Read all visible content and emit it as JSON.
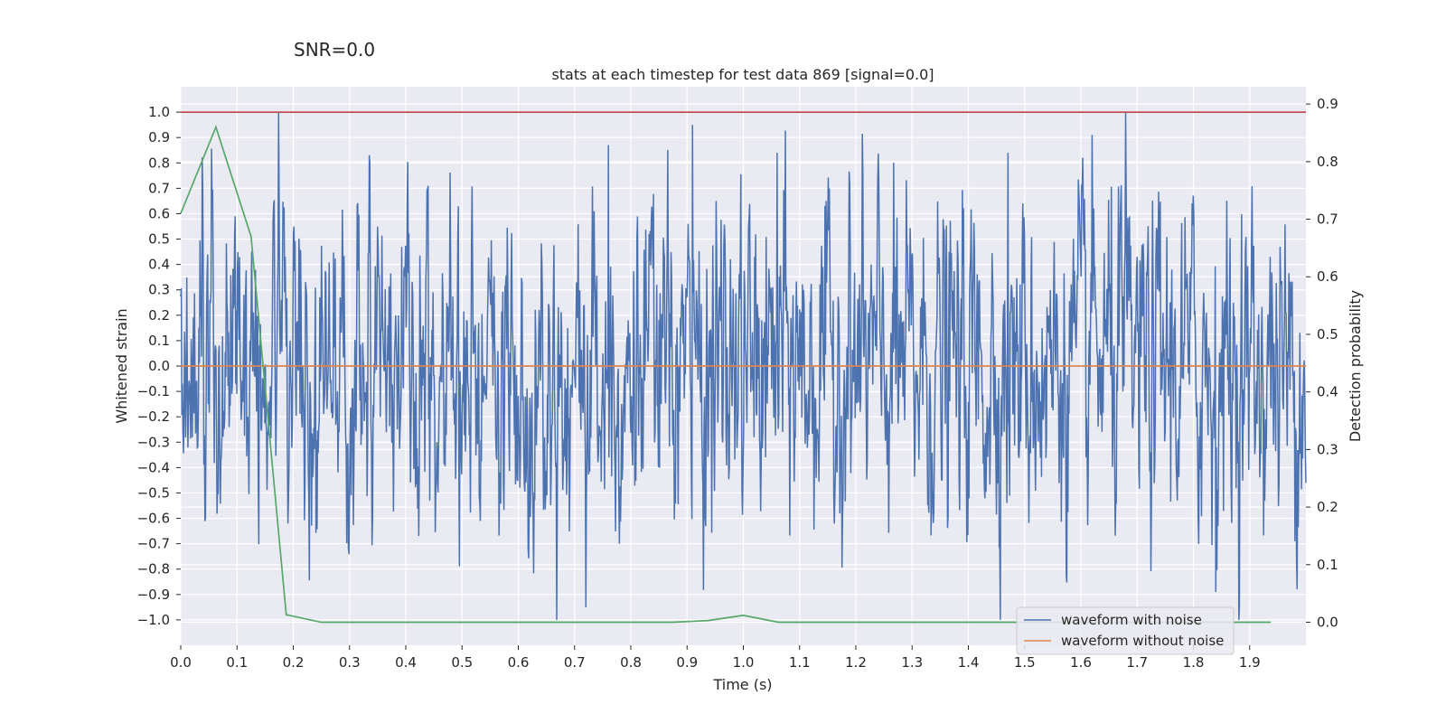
{
  "annotation": "SNR=0.0",
  "chart_data": {
    "type": "line",
    "title": "stats at each timestep for test data 869 [signal=0.0]",
    "xlabel": "Time (s)",
    "ylabel": "Whitened strain",
    "y2label": "Detection probability",
    "xlim": [
      0.0,
      2.0
    ],
    "ylim": [
      -1.1,
      1.1
    ],
    "y2lim": [
      -0.04,
      0.93
    ],
    "x_ticks": [
      "0.0",
      "0.1",
      "0.2",
      "0.3",
      "0.4",
      "0.5",
      "0.6",
      "0.7",
      "0.8",
      "0.9",
      "1.0",
      "1.1",
      "1.2",
      "1.3",
      "1.4",
      "1.5",
      "1.6",
      "1.7",
      "1.8",
      "1.9"
    ],
    "y_ticks": [
      "1.0",
      "0.9",
      "0.8",
      "0.7",
      "0.6",
      "0.5",
      "0.4",
      "0.3",
      "0.2",
      "0.1",
      "0.0",
      "−0.1",
      "−0.2",
      "−0.3",
      "−0.4",
      "−0.5",
      "−0.6",
      "−0.7",
      "−0.8",
      "−0.9",
      "−1.0"
    ],
    "y2_ticks": [
      "0.9",
      "0.8",
      "0.7",
      "0.6",
      "0.5",
      "0.4",
      "0.3",
      "0.2",
      "0.1",
      "0.0"
    ],
    "grid": true,
    "legend_position": "bottom-right",
    "series": [
      {
        "name": "waveform with noise",
        "color": "#4c72b0",
        "axis": "left",
        "x_range": [
          0.0,
          2.0
        ],
        "sample_count": 2048,
        "amplitude_range": [
          -1.0,
          1.0
        ],
        "notable_peaks": [
          {
            "x": 1.68,
            "y": 1.0
          },
          {
            "x": 1.47,
            "y": -1.0
          },
          {
            "x": 0.91,
            "y": 0.95
          },
          {
            "x": 0.72,
            "y": -0.95
          },
          {
            "x": 1.62,
            "y": 0.91
          },
          {
            "x": 0.76,
            "y": 0.87
          },
          {
            "x": 1.47,
            "y": 0.84
          },
          {
            "x": 1.06,
            "y": 0.84
          },
          {
            "x": 1.84,
            "y": -0.89
          }
        ]
      },
      {
        "name": "waveform without noise",
        "color": "#dd8452",
        "axis": "left",
        "x": [
          0.0,
          2.0
        ],
        "y": [
          0.0,
          0.0
        ]
      },
      {
        "name": "",
        "color": "#55a868",
        "axis": "right",
        "x": [
          0.0,
          0.0625,
          0.125,
          0.1875,
          0.25,
          0.3125,
          0.375,
          0.4375,
          0.5,
          0.5625,
          0.625,
          0.6875,
          0.75,
          0.8125,
          0.875,
          0.9375,
          1.0,
          1.0625,
          1.125,
          1.1875,
          1.25,
          1.3125,
          1.375,
          1.4375,
          1.5,
          1.5625,
          1.625,
          1.6875,
          1.75,
          1.8125,
          1.875,
          1.9375
        ],
        "y": [
          0.71,
          0.86,
          0.67,
          0.013,
          0.0,
          0.0,
          0.0,
          0.0,
          0.0,
          0.0,
          0.0,
          0.0,
          0.0,
          0.0,
          0.0,
          0.003,
          0.012,
          0.0,
          0.0,
          0.0,
          0.0,
          0.0,
          0.0,
          0.0,
          0.0,
          0.0,
          0.0,
          0.0,
          0.0,
          0.0,
          0.0,
          0.0
        ]
      },
      {
        "name": "",
        "color": "#c44e52",
        "axis": "left",
        "x": [
          0.0,
          2.0
        ],
        "y": [
          1.0,
          1.0
        ]
      }
    ]
  }
}
